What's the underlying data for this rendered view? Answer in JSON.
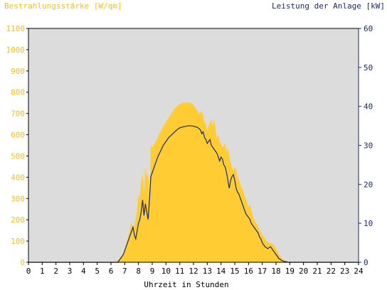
{
  "chart_data": {
    "type": "area",
    "left_axis_title": "Bestrahlungsstärke [W/qm]",
    "right_axis_title": "Leistung der Anlage [kW]",
    "xlabel": "Uhrzeit in Stunden",
    "xlim": [
      0,
      24
    ],
    "ylim_left": [
      0,
      1100
    ],
    "ylim_right": [
      0,
      60
    ],
    "x_ticks": [
      "0",
      "1",
      "2",
      "3",
      "4",
      "5",
      "6",
      "7",
      "8",
      "9",
      "10",
      "11",
      "12",
      "13",
      "14",
      "15",
      "16",
      "17",
      "18",
      "19",
      "20",
      "21",
      "22",
      "23",
      "24"
    ],
    "left_ticks": [
      "0",
      "100",
      "200",
      "300",
      "400",
      "500",
      "600",
      "700",
      "800",
      "900",
      "1000",
      "1100"
    ],
    "right_ticks": [
      "0",
      "10",
      "20",
      "30",
      "40",
      "50",
      "60"
    ],
    "grid": false,
    "colors": {
      "plot_bg": "#dcdcdc",
      "irradiance_fill": "#ffcc33",
      "power_line": "#1a2a6a",
      "left_axis": "#f0c020",
      "right_axis": "#1a2a6a"
    },
    "series": [
      {
        "axis": "left",
        "style": "area",
        "x": [
          0,
          6.3,
          6.6,
          6.8,
          7.0,
          7.2,
          7.4,
          7.5,
          7.6,
          7.8,
          7.9,
          8.0,
          8.1,
          8.2,
          8.3,
          8.4,
          8.5,
          8.6,
          8.7,
          8.8,
          8.9,
          9.0,
          9.2,
          9.5,
          9.8,
          10.0,
          10.3,
          10.6,
          10.9,
          11.2,
          11.5,
          11.8,
          12.0,
          12.2,
          12.4,
          12.6,
          12.7,
          12.8,
          12.9,
          13.0,
          13.1,
          13.2,
          13.3,
          13.4,
          13.5,
          13.6,
          13.7,
          13.8,
          13.9,
          14.0,
          14.1,
          14.2,
          14.3,
          14.4,
          14.5,
          14.6,
          14.7,
          14.8,
          14.9,
          15.0,
          15.1,
          15.2,
          15.3,
          15.4,
          15.5,
          15.6,
          15.7,
          15.8,
          15.9,
          16.0,
          16.1,
          16.2,
          16.3,
          16.4,
          16.5,
          16.6,
          16.7,
          16.8,
          16.9,
          17.0,
          17.2,
          17.4,
          17.6,
          17.8,
          18.0,
          18.2,
          18.4,
          18.6,
          18.8,
          19.0,
          24
        ],
        "y": [
          0,
          0,
          15,
          30,
          60,
          110,
          160,
          190,
          150,
          200,
          250,
          320,
          300,
          380,
          420,
          330,
          450,
          400,
          420,
          300,
          550,
          540,
          560,
          600,
          640,
          660,
          690,
          720,
          740,
          750,
          752,
          750,
          740,
          720,
          700,
          710,
          690,
          660,
          650,
          620,
          640,
          660,
          670,
          640,
          680,
          630,
          580,
          600,
          570,
          560,
          540,
          550,
          560,
          520,
          540,
          500,
          470,
          450,
          430,
          450,
          440,
          400,
          390,
          370,
          350,
          340,
          310,
          300,
          280,
          260,
          270,
          250,
          220,
          200,
          190,
          180,
          170,
          150,
          140,
          130,
          110,
          95,
          90,
          85,
          65,
          40,
          20,
          8,
          2,
          0,
          0
        ]
      },
      {
        "axis": "right",
        "style": "line",
        "x": [
          0,
          6.5,
          6.7,
          6.9,
          7.1,
          7.3,
          7.5,
          7.6,
          7.7,
          7.8,
          7.9,
          8.0,
          8.1,
          8.2,
          8.3,
          8.4,
          8.5,
          8.6,
          8.7,
          8.8,
          8.9,
          9.0,
          9.2,
          9.4,
          9.6,
          9.8,
          10.0,
          10.2,
          10.5,
          10.8,
          11.0,
          11.3,
          11.6,
          11.9,
          12.1,
          12.3,
          12.5,
          12.6,
          12.7,
          12.8,
          12.9,
          13.0,
          13.1,
          13.2,
          13.3,
          13.4,
          13.5,
          13.6,
          13.7,
          13.8,
          13.9,
          14.0,
          14.1,
          14.2,
          14.3,
          14.4,
          14.5,
          14.6,
          14.7,
          14.8,
          14.9,
          15.0,
          15.1,
          15.2,
          15.3,
          15.4,
          15.5,
          15.6,
          15.7,
          15.8,
          15.9,
          16.0,
          16.1,
          16.2,
          16.3,
          16.4,
          16.5,
          16.6,
          16.7,
          16.8,
          16.9,
          17.0,
          17.2,
          17.4,
          17.6,
          17.8,
          18.0,
          18.2,
          18.4,
          18.6,
          18.8,
          18.9,
          24
        ],
        "y": [
          0,
          0,
          1,
          2,
          4,
          6,
          8,
          9,
          7,
          6,
          8,
          10,
          11,
          13,
          16,
          12,
          15,
          13,
          11,
          16,
          22,
          23,
          25,
          27,
          28.5,
          30,
          31,
          32,
          33,
          34,
          34.5,
          34.8,
          35,
          35,
          34.8,
          34.6,
          34,
          33,
          33.5,
          32,
          31.5,
          30.5,
          31,
          31.5,
          30,
          29.5,
          29,
          28.5,
          28,
          27,
          26,
          27,
          26.5,
          25,
          24.5,
          23,
          21,
          19,
          21,
          22,
          22.5,
          21,
          19,
          18,
          17.5,
          16.5,
          15.5,
          14.5,
          13.5,
          12.5,
          12,
          11.5,
          11,
          10,
          9.5,
          9,
          8.5,
          8,
          7.5,
          6.5,
          6,
          5,
          4,
          3.5,
          4,
          3,
          2,
          1,
          0.5,
          0.2,
          0.1,
          0,
          0
        ]
      }
    ]
  }
}
